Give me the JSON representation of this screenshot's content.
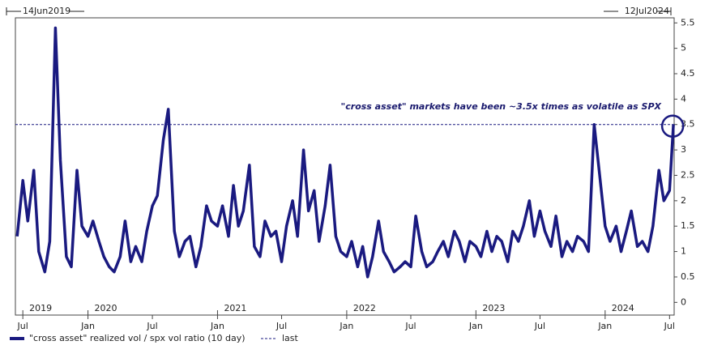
{
  "chart_data": {
    "type": "line",
    "start_label": "14Jun2019",
    "end_label": "12Jul2024",
    "annotation": "\"cross asset\" markets have been ~3.5x times as volatile as SPX",
    "x": [
      "2019-06-15",
      "2019-07-01",
      "2019-07-15",
      "2019-08-01",
      "2019-08-15",
      "2019-09-01",
      "2019-09-15",
      "2019-10-01",
      "2019-10-15",
      "2019-11-01",
      "2019-11-15",
      "2019-12-01",
      "2019-12-15",
      "2020-01-01",
      "2020-01-15",
      "2020-02-01",
      "2020-02-15",
      "2020-03-01",
      "2020-03-15",
      "2020-04-01",
      "2020-04-15",
      "2020-05-01",
      "2020-05-15",
      "2020-06-01",
      "2020-06-15",
      "2020-07-01",
      "2020-07-15",
      "2020-08-01",
      "2020-08-15",
      "2020-09-01",
      "2020-09-15",
      "2020-10-01",
      "2020-10-15",
      "2020-11-01",
      "2020-11-15",
      "2020-12-01",
      "2020-12-15",
      "2021-01-01",
      "2021-01-15",
      "2021-02-01",
      "2021-02-15",
      "2021-03-01",
      "2021-03-15",
      "2021-04-01",
      "2021-04-15",
      "2021-05-01",
      "2021-05-15",
      "2021-06-01",
      "2021-06-15",
      "2021-07-01",
      "2021-07-15",
      "2021-08-01",
      "2021-08-15",
      "2021-09-01",
      "2021-09-15",
      "2021-10-01",
      "2021-10-15",
      "2021-11-01",
      "2021-11-15",
      "2021-12-01",
      "2021-12-15",
      "2022-01-01",
      "2022-01-15",
      "2022-02-01",
      "2022-02-15",
      "2022-03-01",
      "2022-03-15",
      "2022-04-01",
      "2022-04-15",
      "2022-05-01",
      "2022-05-15",
      "2022-06-01",
      "2022-06-15",
      "2022-07-01",
      "2022-07-15",
      "2022-08-01",
      "2022-08-15",
      "2022-09-01",
      "2022-09-15",
      "2022-10-01",
      "2022-10-15",
      "2022-11-01",
      "2022-11-15",
      "2022-12-01",
      "2022-12-15",
      "2023-01-01",
      "2023-01-15",
      "2023-02-01",
      "2023-02-15",
      "2023-03-01",
      "2023-03-15",
      "2023-04-01",
      "2023-04-15",
      "2023-05-01",
      "2023-05-15",
      "2023-06-01",
      "2023-06-15",
      "2023-07-01",
      "2023-07-15",
      "2023-08-01",
      "2023-08-15",
      "2023-09-01",
      "2023-09-15",
      "2023-10-01",
      "2023-10-15",
      "2023-11-01",
      "2023-11-15",
      "2023-12-01",
      "2023-12-15",
      "2024-01-01",
      "2024-01-15",
      "2024-02-01",
      "2024-02-15",
      "2024-03-01",
      "2024-03-15",
      "2024-04-01",
      "2024-04-15",
      "2024-05-01",
      "2024-05-15",
      "2024-06-01",
      "2024-06-15",
      "2024-07-01",
      "2024-07-12"
    ],
    "series": [
      {
        "name": "\"cross asset\" realized vol / spx vol ratio (10 day)",
        "color": "#1a1a80",
        "values": [
          1.3,
          2.4,
          1.6,
          2.6,
          1.0,
          0.6,
          1.2,
          5.4,
          2.8,
          0.9,
          0.7,
          2.6,
          1.5,
          1.3,
          1.6,
          1.2,
          0.9,
          0.7,
          0.6,
          0.9,
          1.6,
          0.8,
          1.1,
          0.8,
          1.4,
          1.9,
          2.1,
          3.2,
          3.8,
          1.4,
          0.9,
          1.2,
          1.3,
          0.7,
          1.1,
          1.9,
          1.6,
          1.5,
          1.9,
          1.3,
          2.3,
          1.5,
          1.8,
          2.7,
          1.1,
          0.9,
          1.6,
          1.3,
          1.4,
          0.8,
          1.5,
          2.0,
          1.3,
          3.0,
          1.8,
          2.2,
          1.2,
          1.9,
          2.7,
          1.3,
          1.0,
          0.9,
          1.2,
          0.7,
          1.1,
          0.5,
          0.9,
          1.6,
          1.0,
          0.8,
          0.6,
          0.7,
          0.8,
          0.7,
          1.7,
          1.0,
          0.7,
          0.8,
          1.0,
          1.2,
          0.9,
          1.4,
          1.2,
          0.8,
          1.2,
          1.1,
          0.9,
          1.4,
          1.0,
          1.3,
          1.2,
          0.8,
          1.4,
          1.2,
          1.5,
          2.0,
          1.3,
          1.8,
          1.4,
          1.1,
          1.7,
          0.9,
          1.2,
          1.0,
          1.3,
          1.2,
          1.0,
          3.5,
          2.6,
          1.5,
          1.2,
          1.5,
          1.0,
          1.4,
          1.8,
          1.1,
          1.2,
          1.0,
          1.5,
          2.6,
          2.0,
          2.2,
          3.5
        ]
      }
    ],
    "last": {
      "name": "last",
      "value": 3.5,
      "color": "#1a1a80"
    },
    "xlim": [
      "2019-06-10",
      "2024-07-14"
    ],
    "xticks": [
      {
        "value": "2019-07-01",
        "label": "Jul"
      },
      {
        "value": "2020-01-01",
        "label": "Jan"
      },
      {
        "value": "2020-07-01",
        "label": "Jul"
      },
      {
        "value": "2021-01-01",
        "label": "Jan"
      },
      {
        "value": "2021-07-01",
        "label": "Jul"
      },
      {
        "value": "2022-01-01",
        "label": "Jan"
      },
      {
        "value": "2022-07-01",
        "label": "Jul"
      },
      {
        "value": "2023-01-01",
        "label": "Jan"
      },
      {
        "value": "2023-07-01",
        "label": "Jul"
      },
      {
        "value": "2024-01-01",
        "label": "Jan"
      },
      {
        "value": "2024-07-01",
        "label": "Jul"
      }
    ],
    "year_labels": [
      {
        "value": "2019-07-01",
        "label": "2019"
      },
      {
        "value": "2020-01-01",
        "label": "2020"
      },
      {
        "value": "2021-01-01",
        "label": "2021"
      },
      {
        "value": "2022-01-01",
        "label": "2022"
      },
      {
        "value": "2023-01-01",
        "label": "2023"
      },
      {
        "value": "2024-01-01",
        "label": "2024"
      }
    ],
    "ylim": [
      -0.25,
      5.6
    ],
    "yticks": [
      0,
      0.5,
      1,
      1.5,
      2,
      2.5,
      3,
      3.5,
      4,
      4.5,
      5,
      5.5
    ]
  }
}
